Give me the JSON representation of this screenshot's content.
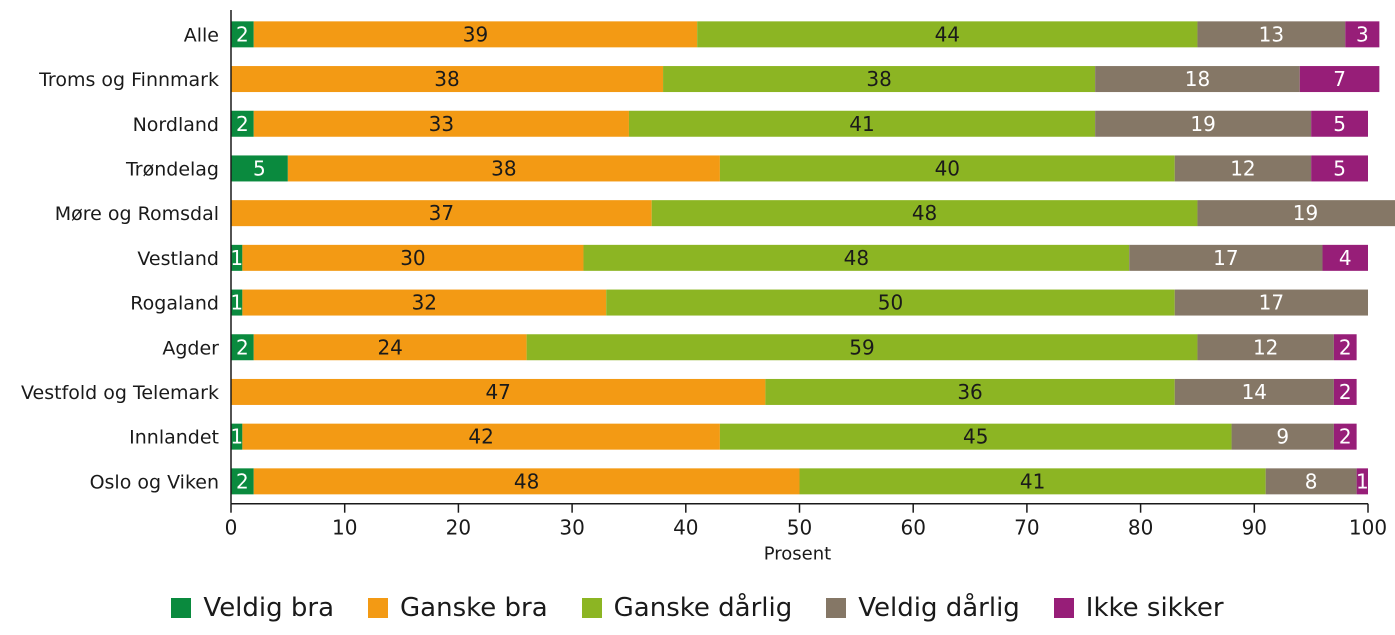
{
  "chart_data": {
    "type": "bar",
    "orientation": "horizontal",
    "stacked": true,
    "title": "",
    "xlabel": "Prosent",
    "ylabel": "",
    "xlim": [
      0,
      100
    ],
    "xticks": [
      0,
      10,
      20,
      30,
      40,
      50,
      60,
      70,
      80,
      90,
      100
    ],
    "grid": false,
    "legend_position": "bottom",
    "categories": [
      "Alle",
      "Troms og Finnmark",
      "Nordland",
      "Trøndelag",
      "Møre og Romsdal",
      "Vestland",
      "Rogaland",
      "Agder",
      "Vestfold og Telemark",
      "Innlandet",
      "Oslo og Viken"
    ],
    "series": [
      {
        "name": "Veldig bra",
        "color": "#0a8a3e",
        "label_color": "#ffffff",
        "values": [
          2,
          0,
          2,
          5,
          0,
          1,
          1,
          2,
          0,
          1,
          2
        ]
      },
      {
        "name": "Ganske bra",
        "color": "#f39a14",
        "label_color": "#1a1a1a",
        "values": [
          39,
          38,
          33,
          38,
          37,
          30,
          32,
          24,
          47,
          42,
          48
        ]
      },
      {
        "name": "Ganske dårlig",
        "color": "#8cb523",
        "label_color": "#1a1a1a",
        "values": [
          44,
          38,
          41,
          40,
          48,
          48,
          50,
          59,
          36,
          45,
          41
        ]
      },
      {
        "name": "Veldig dårlig",
        "color": "#857766",
        "label_color": "#ffffff",
        "values": [
          13,
          18,
          19,
          12,
          19,
          17,
          17,
          12,
          14,
          9,
          8
        ]
      },
      {
        "name": "Ikke sikker",
        "color": "#971e78",
        "label_color": "#ffffff",
        "values": [
          3,
          7,
          5,
          5,
          0,
          4,
          0,
          2,
          2,
          2,
          1
        ]
      }
    ]
  }
}
